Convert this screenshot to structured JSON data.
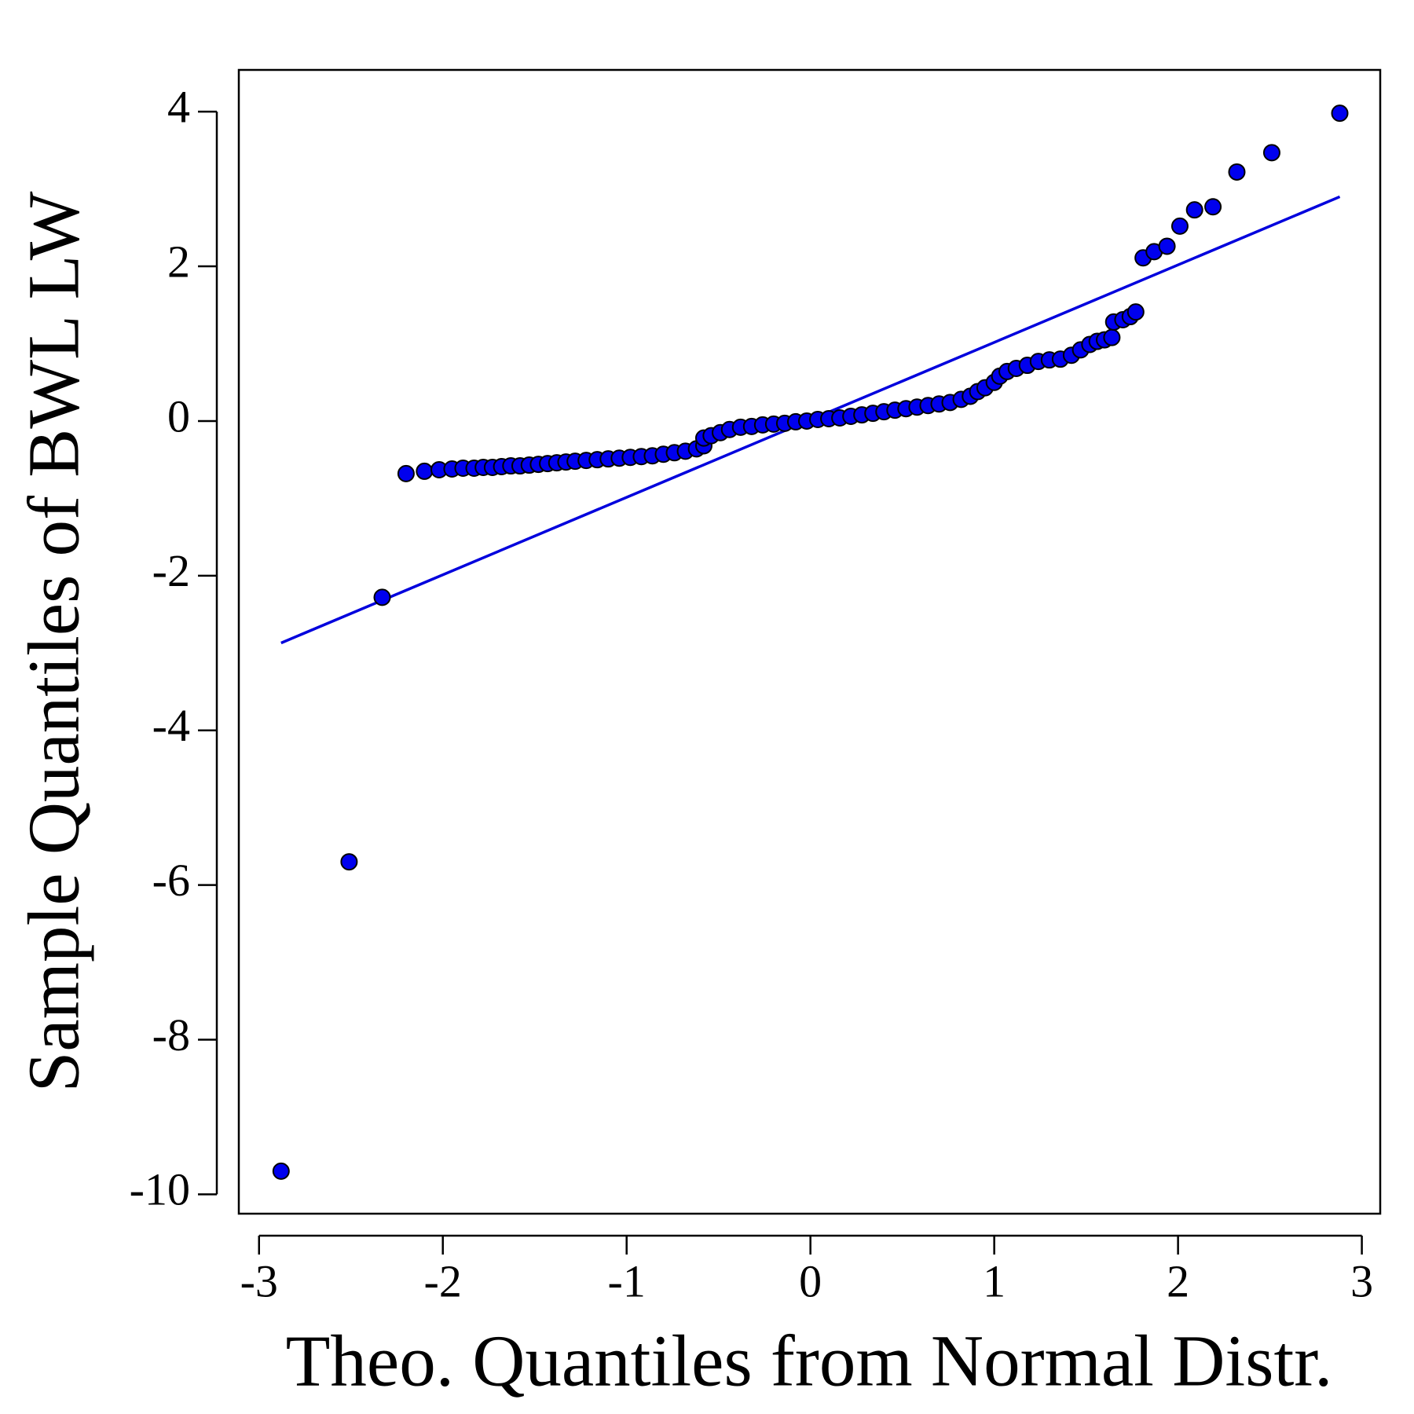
{
  "chart_data": {
    "type": "scatter",
    "xlabel": "Theo. Quantiles from Normal Distr.",
    "ylabel": "Sample Quantiles of BWL LW",
    "xlim": [
      -3.11,
      3.1
    ],
    "ylim": [
      -10.25,
      4.54
    ],
    "xticks": [
      -3,
      -2,
      -1,
      0,
      1,
      2,
      3
    ],
    "yticks": [
      -10,
      -8,
      -6,
      -4,
      -2,
      0,
      2,
      4
    ],
    "color": "#0000ee",
    "x": [
      -2.88,
      -2.51,
      -2.33,
      -2.2,
      -2.1,
      -2.02,
      -1.95,
      -1.89,
      -1.83,
      -1.78,
      -1.73,
      -1.68,
      -1.63,
      -1.58,
      -1.53,
      -1.48,
      -1.43,
      -1.38,
      -1.33,
      -1.28,
      -1.22,
      -1.16,
      -1.1,
      -1.04,
      -0.98,
      -0.92,
      -0.86,
      -0.8,
      -0.74,
      -0.68,
      -0.62,
      -0.58,
      -0.58,
      -0.54,
      -0.49,
      -0.44,
      -0.38,
      -0.32,
      -0.26,
      -0.2,
      -0.14,
      -0.08,
      -0.02,
      0.04,
      0.1,
      0.16,
      0.22,
      0.28,
      0.34,
      0.4,
      0.46,
      0.52,
      0.58,
      0.64,
      0.7,
      0.76,
      0.82,
      0.87,
      0.91,
      0.95,
      1.0,
      1.03,
      1.07,
      1.12,
      1.18,
      1.24,
      1.3,
      1.36,
      1.42,
      1.47,
      1.52,
      1.56,
      1.6,
      1.64,
      1.65,
      1.7,
      1.74,
      1.77,
      1.81,
      1.87,
      1.94,
      2.01,
      2.09,
      2.19,
      2.32,
      2.51,
      2.88
    ],
    "values": [
      -9.7,
      -5.7,
      -2.28,
      -0.68,
      -0.65,
      -0.63,
      -0.62,
      -0.61,
      -0.61,
      -0.6,
      -0.6,
      -0.59,
      -0.58,
      -0.58,
      -0.57,
      -0.56,
      -0.55,
      -0.54,
      -0.53,
      -0.52,
      -0.51,
      -0.5,
      -0.49,
      -0.48,
      -0.47,
      -0.46,
      -0.45,
      -0.43,
      -0.41,
      -0.39,
      -0.36,
      -0.32,
      -0.22,
      -0.19,
      -0.15,
      -0.11,
      -0.08,
      -0.07,
      -0.05,
      -0.04,
      -0.03,
      -0.01,
      0.0,
      0.02,
      0.03,
      0.04,
      0.06,
      0.08,
      0.1,
      0.12,
      0.14,
      0.16,
      0.18,
      0.2,
      0.22,
      0.24,
      0.28,
      0.32,
      0.38,
      0.43,
      0.5,
      0.58,
      0.64,
      0.68,
      0.72,
      0.77,
      0.79,
      0.8,
      0.85,
      0.92,
      0.99,
      1.03,
      1.05,
      1.08,
      1.28,
      1.31,
      1.35,
      1.41,
      2.11,
      2.19,
      2.26,
      2.52,
      2.73,
      2.77,
      3.22,
      3.47,
      3.98
    ],
    "reference_line": {
      "color": "#0000dd",
      "x": [
        -2.88,
        2.88
      ],
      "values": [
        -2.87,
        2.9
      ]
    }
  }
}
